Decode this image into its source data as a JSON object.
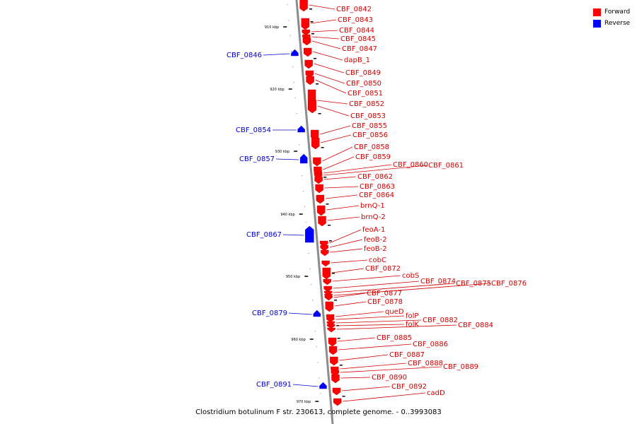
{
  "caption": "Clostridium botulinum F str. 230613, complete genome. - 0..3993083",
  "legend": [
    {
      "label": "Forward",
      "color": "#ff0000"
    },
    {
      "label": "Reverse",
      "color": "#0000ff"
    }
  ],
  "colors": {
    "forward": "#ff0000",
    "forward_label": "#d10000",
    "reverse": "#0000ff",
    "reverse_label": "#0000cc",
    "backbone": "#8c8c8c"
  },
  "ticks": [
    "910 kbp",
    "920 kbp",
    "930 kbp",
    "940 kbp",
    "950 kbp",
    "960 kbp",
    "970 kbp"
  ],
  "forward_genes": [
    "CBF_0842",
    "CBF_0843",
    "CBF_0844",
    "CBF_0845",
    "CBF_0847",
    "dapB_1",
    "CBF_0849",
    "CBF_0850",
    "CBF_0851",
    "CBF_0852",
    "CBF_0853",
    "CBF_0855",
    "CBF_0856",
    "CBF_0858",
    "CBF_0859",
    "CBF_0860",
    "CBF_0861",
    "CBF_0862",
    "CBF_0863",
    "CBF_0864",
    "brnQ-1",
    "brnQ-2",
    "feoA-1",
    "feoB-2",
    "feoB-2",
    "cobC",
    "CBF_0872",
    "cobS",
    "CBF_0874",
    "CBF_0875",
    "CBF_0876",
    "CBF_0877",
    "CBF_0878",
    "queD",
    "folP",
    "folK",
    "CBF_0882",
    "CBF_0884",
    "CBF_0885",
    "CBF_0886",
    "CBF_0887",
    "CBF_0888",
    "CBF_0889",
    "CBF_0890",
    "CBF_0892",
    "cadD"
  ],
  "reverse_genes": [
    "CBF_0846",
    "CBF_0854",
    "CBF_0857",
    "CBF_0867",
    "CBF_0879",
    "CBF_0891"
  ]
}
